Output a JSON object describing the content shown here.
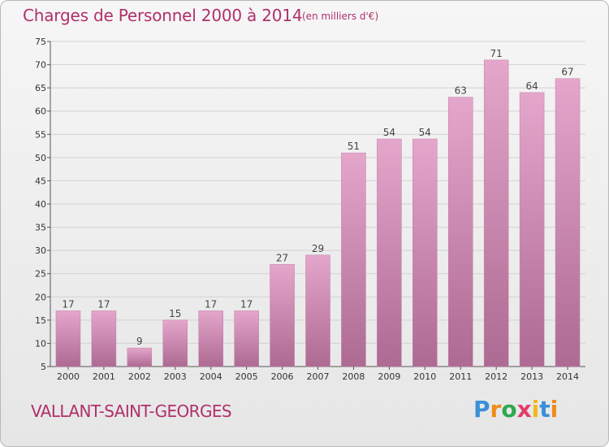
{
  "header": {
    "title": "Charges de Personnel 2000 à 2014",
    "subtitle": "(en milliers d'€)"
  },
  "footer": {
    "commune": "VALLANT-SAINT-GEORGES",
    "logo": "Proxiti"
  },
  "colors": {
    "title": "#b0306a",
    "bar_top": "#e5a6cc",
    "bar_bottom": "#ad6a92",
    "grid": "#d2d2d2"
  },
  "chart_data": {
    "type": "bar",
    "title": "Charges de Personnel 2000 à 2014",
    "subtitle": "(en milliers d'€)",
    "xlabel": "",
    "ylabel": "",
    "categories": [
      "2000",
      "2001",
      "2002",
      "2003",
      "2004",
      "2005",
      "2006",
      "2007",
      "2008",
      "2009",
      "2010",
      "2011",
      "2012",
      "2013",
      "2014"
    ],
    "values": [
      17,
      17,
      9,
      15,
      17,
      17,
      27,
      29,
      51,
      54,
      54,
      63,
      71,
      64,
      67
    ],
    "data_labels": [
      "17",
      "17",
      "9",
      "15",
      "17",
      "17",
      "27",
      "29",
      "51",
      "54",
      "54",
      "63",
      "71",
      "64",
      "67"
    ],
    "ylim": [
      5,
      75
    ],
    "yticks": [
      5,
      10,
      15,
      20,
      25,
      30,
      35,
      40,
      45,
      50,
      55,
      60,
      65,
      70,
      75
    ],
    "grid": true,
    "legend": "none"
  }
}
